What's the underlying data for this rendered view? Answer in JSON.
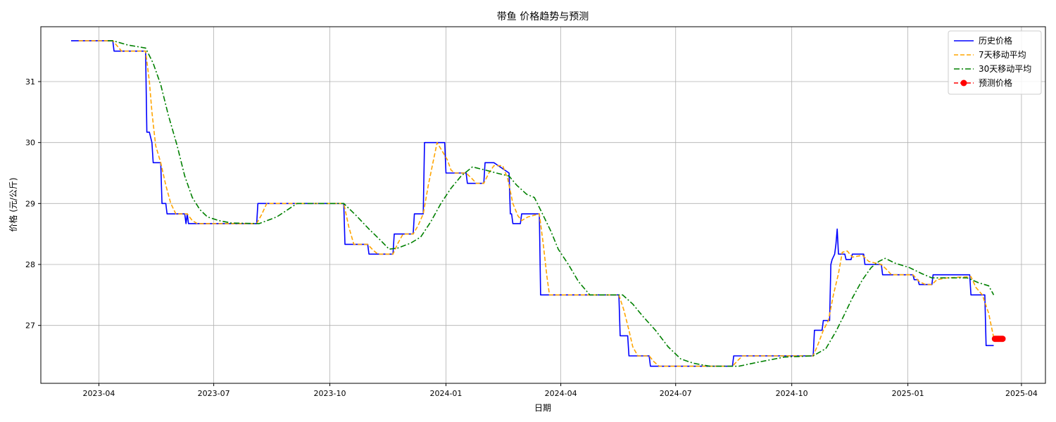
{
  "chart_data": {
    "type": "line",
    "title": "带鱼 价格趋势与预测",
    "xlabel": "日期",
    "ylabel": "价格 (元/公斤)",
    "xlim": [
      "2023-02-14",
      "2025-04-20"
    ],
    "ylim": [
      26.05,
      31.9
    ],
    "grid": true,
    "legend_position": "top-right",
    "x_ticks": [
      "2023-04",
      "2023-07",
      "2023-10",
      "2024-01",
      "2024-04",
      "2024-07",
      "2024-10",
      "2025-01",
      "2025-04"
    ],
    "y_ticks": [
      27,
      28,
      29,
      30,
      31
    ],
    "series": [
      {
        "name": "历史价格",
        "color": "#0000ff",
        "style": "solid",
        "points": [
          [
            "2023-03-10",
            31.67
          ],
          [
            "2023-04-12",
            31.67
          ],
          [
            "2023-04-13",
            31.5
          ],
          [
            "2023-05-08",
            31.5
          ],
          [
            "2023-05-09",
            30.17
          ],
          [
            "2023-05-11",
            30.17
          ],
          [
            "2023-05-13",
            30.0
          ],
          [
            "2023-05-14",
            29.67
          ],
          [
            "2023-05-20",
            29.67
          ],
          [
            "2023-05-21",
            29.0
          ],
          [
            "2023-05-24",
            29.0
          ],
          [
            "2023-05-25",
            28.83
          ],
          [
            "2023-06-08",
            28.83
          ],
          [
            "2023-06-09",
            28.67
          ],
          [
            "2023-06-10",
            28.83
          ],
          [
            "2023-06-11",
            28.67
          ],
          [
            "2023-08-04",
            28.67
          ],
          [
            "2023-08-05",
            29.0
          ],
          [
            "2023-10-12",
            29.0
          ],
          [
            "2023-10-13",
            28.33
          ],
          [
            "2023-10-31",
            28.33
          ],
          [
            "2023-11-01",
            28.17
          ],
          [
            "2023-11-20",
            28.17
          ],
          [
            "2023-11-21",
            28.5
          ],
          [
            "2023-12-06",
            28.5
          ],
          [
            "2023-12-07",
            28.83
          ],
          [
            "2023-12-14",
            28.83
          ],
          [
            "2023-12-15",
            30.0
          ],
          [
            "2023-12-31",
            30.0
          ],
          [
            "2024-01-01",
            29.5
          ],
          [
            "2024-01-17",
            29.5
          ],
          [
            "2024-01-18",
            29.33
          ],
          [
            "2024-01-31",
            29.33
          ],
          [
            "2024-02-01",
            29.67
          ],
          [
            "2024-02-08",
            29.67
          ],
          [
            "2024-02-20",
            29.5
          ],
          [
            "2024-02-21",
            28.83
          ],
          [
            "2024-02-22",
            28.83
          ],
          [
            "2024-02-23",
            28.67
          ],
          [
            "2024-02-29",
            28.67
          ],
          [
            "2024-03-01",
            28.83
          ],
          [
            "2024-03-15",
            28.83
          ],
          [
            "2024-03-16",
            27.5
          ],
          [
            "2024-05-17",
            27.5
          ],
          [
            "2024-05-18",
            26.83
          ],
          [
            "2024-05-24",
            26.83
          ],
          [
            "2024-05-25",
            26.5
          ],
          [
            "2024-06-10",
            26.5
          ],
          [
            "2024-06-11",
            26.33
          ],
          [
            "2024-08-15",
            26.33
          ],
          [
            "2024-08-16",
            26.5
          ],
          [
            "2024-10-18",
            26.5
          ],
          [
            "2024-10-19",
            26.92
          ],
          [
            "2024-10-25",
            26.92
          ],
          [
            "2024-10-26",
            27.08
          ],
          [
            "2024-10-31",
            27.08
          ],
          [
            "2024-11-01",
            28.0
          ],
          [
            "2024-11-02",
            28.08
          ],
          [
            "2024-11-04",
            28.17
          ],
          [
            "2024-11-05",
            28.33
          ],
          [
            "2024-11-06",
            28.58
          ],
          [
            "2024-11-07",
            28.17
          ],
          [
            "2024-11-12",
            28.17
          ],
          [
            "2024-11-13",
            28.08
          ],
          [
            "2024-11-17",
            28.08
          ],
          [
            "2024-11-18",
            28.17
          ],
          [
            "2024-11-27",
            28.17
          ],
          [
            "2024-11-28",
            28.0
          ],
          [
            "2024-12-11",
            28.0
          ],
          [
            "2024-12-12",
            27.83
          ],
          [
            "2025-01-05",
            27.83
          ],
          [
            "2025-01-06",
            27.75
          ],
          [
            "2025-01-09",
            27.75
          ],
          [
            "2025-01-10",
            27.67
          ],
          [
            "2025-01-20",
            27.67
          ],
          [
            "2025-01-21",
            27.83
          ],
          [
            "2025-02-19",
            27.83
          ],
          [
            "2025-02-20",
            27.5
          ],
          [
            "2025-03-03",
            27.5
          ],
          [
            "2025-03-04",
            26.67
          ],
          [
            "2025-03-10",
            26.67
          ]
        ]
      },
      {
        "name": "7天移动平均",
        "color": "#ffa500",
        "style": "dashed",
        "points": [
          [
            "2023-03-16",
            31.67
          ],
          [
            "2023-04-12",
            31.67
          ],
          [
            "2023-04-19",
            31.5
          ],
          [
            "2023-05-08",
            31.5
          ],
          [
            "2023-05-11",
            31.0
          ],
          [
            "2023-05-13",
            30.5
          ],
          [
            "2023-05-16",
            29.95
          ],
          [
            "2023-05-20",
            29.67
          ],
          [
            "2023-05-24",
            29.3
          ],
          [
            "2023-05-28",
            29.0
          ],
          [
            "2023-06-01",
            28.83
          ],
          [
            "2023-06-10",
            28.83
          ],
          [
            "2023-06-14",
            28.72
          ],
          [
            "2023-06-18",
            28.67
          ],
          [
            "2023-08-04",
            28.67
          ],
          [
            "2023-08-08",
            28.82
          ],
          [
            "2023-08-12",
            29.0
          ],
          [
            "2023-10-12",
            29.0
          ],
          [
            "2023-10-16",
            28.62
          ],
          [
            "2023-10-20",
            28.33
          ],
          [
            "2023-10-31",
            28.33
          ],
          [
            "2023-11-04",
            28.24
          ],
          [
            "2023-11-08",
            28.17
          ],
          [
            "2023-11-20",
            28.17
          ],
          [
            "2023-11-24",
            28.35
          ],
          [
            "2023-11-28",
            28.5
          ],
          [
            "2023-12-06",
            28.5
          ],
          [
            "2023-12-10",
            28.64
          ],
          [
            "2023-12-14",
            28.83
          ],
          [
            "2023-12-18",
            29.3
          ],
          [
            "2023-12-22",
            29.7
          ],
          [
            "2023-12-25",
            30.0
          ],
          [
            "2024-01-02",
            29.72
          ],
          [
            "2024-01-05",
            29.55
          ],
          [
            "2024-01-08",
            29.5
          ],
          [
            "2024-01-17",
            29.5
          ],
          [
            "2024-01-22",
            29.4
          ],
          [
            "2024-01-25",
            29.33
          ],
          [
            "2024-01-31",
            29.33
          ],
          [
            "2024-02-04",
            29.5
          ],
          [
            "2024-02-08",
            29.62
          ],
          [
            "2024-02-15",
            29.62
          ],
          [
            "2024-02-19",
            29.4
          ],
          [
            "2024-02-23",
            29.0
          ],
          [
            "2024-02-27",
            28.8
          ],
          [
            "2024-03-01",
            28.72
          ],
          [
            "2024-03-06",
            28.78
          ],
          [
            "2024-03-15",
            28.83
          ],
          [
            "2024-03-18",
            28.35
          ],
          [
            "2024-03-21",
            27.8
          ],
          [
            "2024-03-23",
            27.5
          ],
          [
            "2024-05-17",
            27.5
          ],
          [
            "2024-05-21",
            27.25
          ],
          [
            "2024-05-25",
            26.92
          ],
          [
            "2024-05-28",
            26.65
          ],
          [
            "2024-06-01",
            26.5
          ],
          [
            "2024-06-10",
            26.5
          ],
          [
            "2024-06-14",
            26.4
          ],
          [
            "2024-06-18",
            26.33
          ],
          [
            "2024-08-15",
            26.33
          ],
          [
            "2024-08-19",
            26.42
          ],
          [
            "2024-08-23",
            26.5
          ],
          [
            "2024-10-18",
            26.5
          ],
          [
            "2024-10-22",
            26.7
          ],
          [
            "2024-10-26",
            26.92
          ],
          [
            "2024-10-30",
            27.08
          ],
          [
            "2024-11-03",
            27.5
          ],
          [
            "2024-11-07",
            27.85
          ],
          [
            "2024-11-10",
            28.2
          ],
          [
            "2024-11-14",
            28.22
          ],
          [
            "2024-11-18",
            28.12
          ],
          [
            "2024-11-26",
            28.15
          ],
          [
            "2024-12-01",
            28.05
          ],
          [
            "2024-12-11",
            28.0
          ],
          [
            "2024-12-15",
            27.92
          ],
          [
            "2024-12-19",
            27.83
          ],
          [
            "2025-01-05",
            27.83
          ],
          [
            "2025-01-10",
            27.72
          ],
          [
            "2025-01-15",
            27.67
          ],
          [
            "2025-01-20",
            27.67
          ],
          [
            "2025-01-24",
            27.75
          ],
          [
            "2025-02-01",
            27.78
          ],
          [
            "2025-02-20",
            27.8
          ],
          [
            "2025-02-24",
            27.62
          ],
          [
            "2025-03-01",
            27.5
          ],
          [
            "2025-03-06",
            27.2
          ],
          [
            "2025-03-10",
            26.8
          ]
        ]
      },
      {
        "name": "30天移动平均",
        "color": "#008000",
        "style": "dashdot",
        "points": [
          [
            "2023-04-08",
            31.67
          ],
          [
            "2023-04-12",
            31.67
          ],
          [
            "2023-04-24",
            31.6
          ],
          [
            "2023-05-08",
            31.55
          ],
          [
            "2023-05-14",
            31.3
          ],
          [
            "2023-05-20",
            30.95
          ],
          [
            "2023-05-26",
            30.45
          ],
          [
            "2023-06-02",
            29.95
          ],
          [
            "2023-06-08",
            29.45
          ],
          [
            "2023-06-14",
            29.1
          ],
          [
            "2023-06-20",
            28.9
          ],
          [
            "2023-06-26",
            28.78
          ],
          [
            "2023-07-05",
            28.72
          ],
          [
            "2023-07-15",
            28.68
          ],
          [
            "2023-08-06",
            28.67
          ],
          [
            "2023-08-20",
            28.78
          ],
          [
            "2023-09-05",
            29.0
          ],
          [
            "2023-10-12",
            29.0
          ],
          [
            "2023-10-22",
            28.8
          ],
          [
            "2023-11-01",
            28.58
          ],
          [
            "2023-11-10",
            28.4
          ],
          [
            "2023-11-17",
            28.25
          ],
          [
            "2023-11-24",
            28.27
          ],
          [
            "2023-12-04",
            28.35
          ],
          [
            "2023-12-12",
            28.45
          ],
          [
            "2023-12-20",
            28.7
          ],
          [
            "2023-12-28",
            29.0
          ],
          [
            "2024-01-05",
            29.25
          ],
          [
            "2024-01-13",
            29.45
          ],
          [
            "2024-01-22",
            29.6
          ],
          [
            "2024-02-01",
            29.55
          ],
          [
            "2024-02-10",
            29.5
          ],
          [
            "2024-02-20",
            29.45
          ],
          [
            "2024-02-26",
            29.3
          ],
          [
            "2024-03-05",
            29.15
          ],
          [
            "2024-03-11",
            29.1
          ],
          [
            "2024-03-17",
            28.85
          ],
          [
            "2024-03-24",
            28.55
          ],
          [
            "2024-03-30",
            28.25
          ],
          [
            "2024-04-07",
            28.0
          ],
          [
            "2024-04-15",
            27.72
          ],
          [
            "2024-04-24",
            27.5
          ],
          [
            "2024-05-20",
            27.5
          ],
          [
            "2024-05-28",
            27.35
          ],
          [
            "2024-06-05",
            27.15
          ],
          [
            "2024-06-15",
            26.92
          ],
          [
            "2024-06-25",
            26.65
          ],
          [
            "2024-07-05",
            26.45
          ],
          [
            "2024-07-15",
            26.38
          ],
          [
            "2024-07-28",
            26.33
          ],
          [
            "2024-08-20",
            26.33
          ],
          [
            "2024-09-05",
            26.4
          ],
          [
            "2024-09-25",
            26.48
          ],
          [
            "2024-10-18",
            26.5
          ],
          [
            "2024-10-28",
            26.62
          ],
          [
            "2024-11-05",
            26.9
          ],
          [
            "2024-11-11",
            27.15
          ],
          [
            "2024-11-18",
            27.45
          ],
          [
            "2024-11-26",
            27.75
          ],
          [
            "2024-12-03",
            27.95
          ],
          [
            "2024-12-09",
            28.05
          ],
          [
            "2024-12-14",
            28.1
          ],
          [
            "2024-12-22",
            28.02
          ],
          [
            "2025-01-02",
            27.95
          ],
          [
            "2025-01-12",
            27.85
          ],
          [
            "2025-01-20",
            27.78
          ],
          [
            "2025-02-01",
            27.78
          ],
          [
            "2025-02-17",
            27.78
          ],
          [
            "2025-02-26",
            27.7
          ],
          [
            "2025-03-06",
            27.65
          ],
          [
            "2025-03-10",
            27.5
          ]
        ]
      },
      {
        "name": "预测价格",
        "color": "#ff0000",
        "style": "dashed-marker",
        "points": [
          [
            "2025-03-11",
            26.78
          ],
          [
            "2025-03-12",
            26.78
          ],
          [
            "2025-03-13",
            26.78
          ],
          [
            "2025-03-14",
            26.78
          ],
          [
            "2025-03-15",
            26.78
          ],
          [
            "2025-03-16",
            26.78
          ],
          [
            "2025-03-17",
            26.78
          ]
        ]
      }
    ]
  }
}
